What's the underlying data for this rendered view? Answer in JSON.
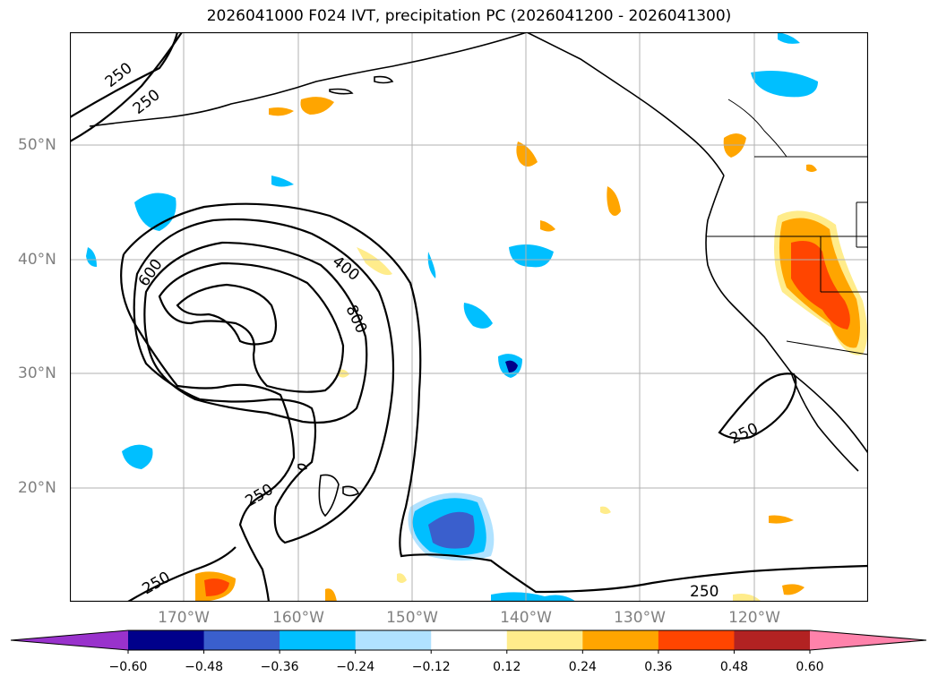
{
  "title": "2026041000 F024 IVT, precipitation PC (2026041200 - 2026041300)",
  "lat_labels": [
    "50°N",
    "40°N",
    "30°N",
    "20°N"
  ],
  "lon_labels": [
    "170°W",
    "160°W",
    "150°W",
    "140°W",
    "130°W",
    "120°W"
  ],
  "contour_labels": [
    "250",
    "250",
    "600",
    "400",
    "800",
    "250",
    "250",
    "250",
    "250"
  ],
  "colorbar": {
    "ticks": [
      "−0.60",
      "−0.48",
      "−0.36",
      "−0.24",
      "−0.12",
      "0.12",
      "0.24",
      "0.36",
      "0.48",
      "0.60"
    ],
    "colors": [
      "#9932cc",
      "#00008b",
      "#3a5fcd",
      "#00bfff",
      "#b0e2ff",
      "#ffffff",
      "#ffec8b",
      "#ffa500",
      "#ff4500",
      "#b22222",
      "#ff82ab"
    ]
  }
}
